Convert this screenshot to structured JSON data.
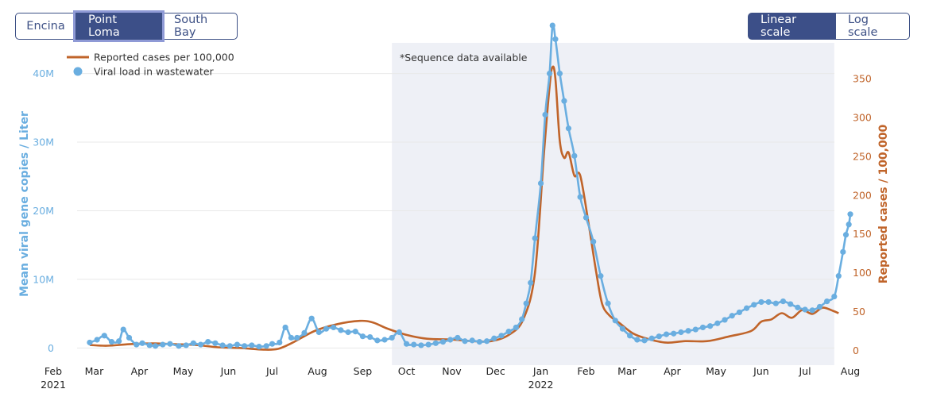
{
  "site_buttons": [
    {
      "label": "Encina",
      "active": false,
      "name": "encina-button"
    },
    {
      "label": "Point Loma",
      "active": true,
      "name": "point-loma-button"
    },
    {
      "label": "South Bay",
      "active": false,
      "name": "south-bay-button"
    }
  ],
  "scale_buttons": [
    {
      "label": "Linear scale",
      "active": true,
      "name": "linear-scale-button"
    },
    {
      "label": "Log scale",
      "active": false,
      "name": "log-scale-button"
    }
  ],
  "colors": {
    "viral": "#6aaee0",
    "cases": "#c0642a",
    "shade": "#eef0f6",
    "grid": "#e8e8e8",
    "button": "#3c4f88"
  },
  "chart_data": {
    "type": "line",
    "x_axis": {
      "range": [
        "2021-02-01",
        "2022-08-01"
      ],
      "ticks": [
        {
          "date": "2021-02-01",
          "label": "Feb",
          "sublabel": "2021"
        },
        {
          "date": "2021-03-01",
          "label": "Mar"
        },
        {
          "date": "2021-04-01",
          "label": "Apr"
        },
        {
          "date": "2021-05-01",
          "label": "May"
        },
        {
          "date": "2021-06-01",
          "label": "Jun"
        },
        {
          "date": "2021-07-01",
          "label": "Jul"
        },
        {
          "date": "2021-08-01",
          "label": "Aug"
        },
        {
          "date": "2021-09-01",
          "label": "Sep"
        },
        {
          "date": "2021-10-01",
          "label": "Oct"
        },
        {
          "date": "2021-11-01",
          "label": "Nov"
        },
        {
          "date": "2021-12-01",
          "label": "Dec"
        },
        {
          "date": "2022-01-01",
          "label": "Jan",
          "sublabel": "2022"
        },
        {
          "date": "2022-02-01",
          "label": "Feb"
        },
        {
          "date": "2022-03-01",
          "label": "Mar"
        },
        {
          "date": "2022-04-01",
          "label": "Apr"
        },
        {
          "date": "2022-05-01",
          "label": "May"
        },
        {
          "date": "2022-06-01",
          "label": "Jun"
        },
        {
          "date": "2022-07-01",
          "label": "Jul"
        },
        {
          "date": "2022-08-01",
          "label": "Aug"
        }
      ]
    },
    "y_left": {
      "label": "Mean viral gene copies / Liter",
      "range": [
        -2500000,
        44000000
      ],
      "ticks": [
        {
          "value": 0,
          "label": "0"
        },
        {
          "value": 10000000,
          "label": "10M"
        },
        {
          "value": 20000000,
          "label": "20M"
        },
        {
          "value": 30000000,
          "label": "30M"
        },
        {
          "value": 40000000,
          "label": "40M"
        }
      ]
    },
    "y_right": {
      "label": "Reported cases / 100,000",
      "range": [
        -19,
        392
      ],
      "ticks": [
        {
          "value": 0,
          "label": "0"
        },
        {
          "value": 50,
          "label": "50"
        },
        {
          "value": 100,
          "label": "100"
        },
        {
          "value": 150,
          "label": "150"
        },
        {
          "value": 200,
          "label": "200"
        },
        {
          "value": 250,
          "label": "250"
        },
        {
          "value": 300,
          "label": "300"
        },
        {
          "value": 350,
          "label": "350"
        }
      ]
    },
    "shaded_region": {
      "start": "2021-09-21",
      "end": "2022-07-21",
      "label": "*Sequence data available"
    },
    "legend": {
      "position": "top-left",
      "items": [
        {
          "label": "Reported cases per 100,000",
          "series": "cases",
          "marker": "line"
        },
        {
          "label": "Viral load in wastewater",
          "series": "viral",
          "marker": "dot"
        }
      ]
    },
    "series": [
      {
        "name": "Reported cases per 100,000",
        "axis": "right",
        "kind": "line",
        "points": [
          [
            "2021-02-26",
            7
          ],
          [
            "2021-03-10",
            6
          ],
          [
            "2021-03-25",
            8
          ],
          [
            "2021-04-10",
            9
          ],
          [
            "2021-04-25",
            8
          ],
          [
            "2021-05-10",
            7
          ],
          [
            "2021-05-25",
            4
          ],
          [
            "2021-06-10",
            3
          ],
          [
            "2021-06-25",
            1
          ],
          [
            "2021-07-05",
            2
          ],
          [
            "2021-07-15",
            10
          ],
          [
            "2021-07-30",
            25
          ],
          [
            "2021-08-15",
            34
          ],
          [
            "2021-08-30",
            38
          ],
          [
            "2021-09-08",
            36
          ],
          [
            "2021-09-18",
            28
          ],
          [
            "2021-10-01",
            20
          ],
          [
            "2021-10-15",
            15
          ],
          [
            "2021-11-01",
            14
          ],
          [
            "2021-11-15",
            12
          ],
          [
            "2021-11-28",
            12
          ],
          [
            "2021-12-10",
            20
          ],
          [
            "2021-12-20",
            40
          ],
          [
            "2021-12-28",
            100
          ],
          [
            "2022-01-03",
            250
          ],
          [
            "2022-01-07",
            340
          ],
          [
            "2022-01-09",
            365
          ],
          [
            "2022-01-11",
            350
          ],
          [
            "2022-01-14",
            270
          ],
          [
            "2022-01-17",
            248
          ],
          [
            "2022-01-20",
            255
          ],
          [
            "2022-01-24",
            225
          ],
          [
            "2022-01-28",
            225
          ],
          [
            "2022-02-03",
            160
          ],
          [
            "2022-02-08",
            100
          ],
          [
            "2022-02-12",
            60
          ],
          [
            "2022-02-17",
            45
          ],
          [
            "2022-02-24",
            35
          ],
          [
            "2022-03-05",
            22
          ],
          [
            "2022-03-15",
            15
          ],
          [
            "2022-03-28",
            10
          ],
          [
            "2022-04-10",
            12
          ],
          [
            "2022-04-25",
            12
          ],
          [
            "2022-05-10",
            18
          ],
          [
            "2022-05-25",
            25
          ],
          [
            "2022-06-01",
            37
          ],
          [
            "2022-06-08",
            40
          ],
          [
            "2022-06-15",
            48
          ],
          [
            "2022-06-22",
            42
          ],
          [
            "2022-06-29",
            52
          ],
          [
            "2022-07-06",
            47
          ],
          [
            "2022-07-13",
            55
          ],
          [
            "2022-07-20",
            51
          ],
          [
            "2022-07-24",
            48
          ]
        ]
      },
      {
        "name": "Viral load in wastewater",
        "axis": "left",
        "kind": "line+markers",
        "points": [
          [
            "2021-02-26",
            800000
          ],
          [
            "2021-03-03",
            1200000
          ],
          [
            "2021-03-08",
            1800000
          ],
          [
            "2021-03-13",
            900000
          ],
          [
            "2021-03-18",
            1000000
          ],
          [
            "2021-03-21",
            2700000
          ],
          [
            "2021-03-25",
            1500000
          ],
          [
            "2021-03-30",
            500000
          ],
          [
            "2021-04-03",
            700000
          ],
          [
            "2021-04-08",
            400000
          ],
          [
            "2021-04-12",
            300000
          ],
          [
            "2021-04-17",
            500000
          ],
          [
            "2021-04-22",
            600000
          ],
          [
            "2021-04-28",
            300000
          ],
          [
            "2021-05-03",
            400000
          ],
          [
            "2021-05-08",
            700000
          ],
          [
            "2021-05-13",
            500000
          ],
          [
            "2021-05-18",
            900000
          ],
          [
            "2021-05-23",
            700000
          ],
          [
            "2021-05-28",
            400000
          ],
          [
            "2021-06-02",
            300000
          ],
          [
            "2021-06-07",
            500000
          ],
          [
            "2021-06-12",
            300000
          ],
          [
            "2021-06-17",
            400000
          ],
          [
            "2021-06-22",
            200000
          ],
          [
            "2021-06-27",
            300000
          ],
          [
            "2021-07-01",
            600000
          ],
          [
            "2021-07-06",
            800000
          ],
          [
            "2021-07-10",
            3000000
          ],
          [
            "2021-07-14",
            1500000
          ],
          [
            "2021-07-18",
            1500000
          ],
          [
            "2021-07-23",
            2200000
          ],
          [
            "2021-07-28",
            4300000
          ],
          [
            "2021-08-02",
            2300000
          ],
          [
            "2021-08-07",
            2800000
          ],
          [
            "2021-08-12",
            3000000
          ],
          [
            "2021-08-17",
            2600000
          ],
          [
            "2021-08-22",
            2300000
          ],
          [
            "2021-08-27",
            2400000
          ],
          [
            "2021-09-01",
            1700000
          ],
          [
            "2021-09-06",
            1600000
          ],
          [
            "2021-09-11",
            1100000
          ],
          [
            "2021-09-16",
            1200000
          ],
          [
            "2021-09-21",
            1500000
          ],
          [
            "2021-09-26",
            2300000
          ],
          [
            "2021-10-01",
            600000
          ],
          [
            "2021-10-06",
            500000
          ],
          [
            "2021-10-11",
            400000
          ],
          [
            "2021-10-16",
            500000
          ],
          [
            "2021-10-21",
            700000
          ],
          [
            "2021-10-26",
            900000
          ],
          [
            "2021-10-31",
            1200000
          ],
          [
            "2021-11-05",
            1500000
          ],
          [
            "2021-11-10",
            1000000
          ],
          [
            "2021-11-15",
            1100000
          ],
          [
            "2021-11-20",
            900000
          ],
          [
            "2021-11-25",
            1000000
          ],
          [
            "2021-11-30",
            1400000
          ],
          [
            "2021-12-05",
            1800000
          ],
          [
            "2021-12-10",
            2400000
          ],
          [
            "2021-12-15",
            3000000
          ],
          [
            "2021-12-19",
            4200000
          ],
          [
            "2021-12-22",
            6500000
          ],
          [
            "2021-12-25",
            9500000
          ],
          [
            "2021-12-28",
            16000000
          ],
          [
            "2022-01-01",
            24000000
          ],
          [
            "2022-01-04",
            34000000
          ],
          [
            "2022-01-07",
            40000000
          ],
          [
            "2022-01-09",
            47000000
          ],
          [
            "2022-01-11",
            45000000
          ],
          [
            "2022-01-14",
            40000000
          ],
          [
            "2022-01-17",
            36000000
          ],
          [
            "2022-01-20",
            32000000
          ],
          [
            "2022-01-24",
            28000000
          ],
          [
            "2022-01-28",
            22000000
          ],
          [
            "2022-02-01",
            19000000
          ],
          [
            "2022-02-06",
            15500000
          ],
          [
            "2022-02-11",
            10500000
          ],
          [
            "2022-02-16",
            6500000
          ],
          [
            "2022-02-21",
            4000000
          ],
          [
            "2022-02-26",
            2800000
          ],
          [
            "2022-03-03",
            1800000
          ],
          [
            "2022-03-08",
            1200000
          ],
          [
            "2022-03-13",
            1100000
          ],
          [
            "2022-03-18",
            1400000
          ],
          [
            "2022-03-23",
            1700000
          ],
          [
            "2022-03-28",
            2000000
          ],
          [
            "2022-04-02",
            2100000
          ],
          [
            "2022-04-07",
            2300000
          ],
          [
            "2022-04-12",
            2500000
          ],
          [
            "2022-04-17",
            2700000
          ],
          [
            "2022-04-22",
            3000000
          ],
          [
            "2022-04-27",
            3200000
          ],
          [
            "2022-05-02",
            3600000
          ],
          [
            "2022-05-07",
            4100000
          ],
          [
            "2022-05-12",
            4700000
          ],
          [
            "2022-05-17",
            5200000
          ],
          [
            "2022-05-22",
            5800000
          ],
          [
            "2022-05-27",
            6300000
          ],
          [
            "2022-06-01",
            6700000
          ],
          [
            "2022-06-06",
            6700000
          ],
          [
            "2022-06-11",
            6500000
          ],
          [
            "2022-06-16",
            6800000
          ],
          [
            "2022-06-21",
            6400000
          ],
          [
            "2022-06-26",
            5900000
          ],
          [
            "2022-07-01",
            5600000
          ],
          [
            "2022-07-06",
            5500000
          ],
          [
            "2022-07-11",
            6000000
          ],
          [
            "2022-07-16",
            6800000
          ],
          [
            "2022-07-21",
            7500000
          ],
          [
            "2022-07-24",
            10500000
          ],
          [
            "2022-07-27",
            14000000
          ],
          [
            "2022-07-29",
            16500000
          ],
          [
            "2022-07-31",
            18000000
          ],
          [
            "2022-08-01",
            19500000
          ]
        ]
      }
    ]
  }
}
